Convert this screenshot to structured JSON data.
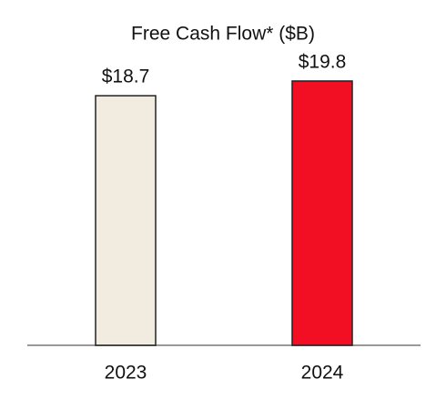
{
  "chart_data": {
    "type": "bar",
    "title": "Free Cash Flow* ($B)",
    "categories": [
      "2023",
      "2024"
    ],
    "values": [
      18.7,
      19.8
    ],
    "value_labels": [
      "$18.7",
      "$19.8"
    ],
    "colors": [
      "#f2ebdf",
      "#f20f23"
    ],
    "ylim": [
      0,
      20
    ]
  }
}
